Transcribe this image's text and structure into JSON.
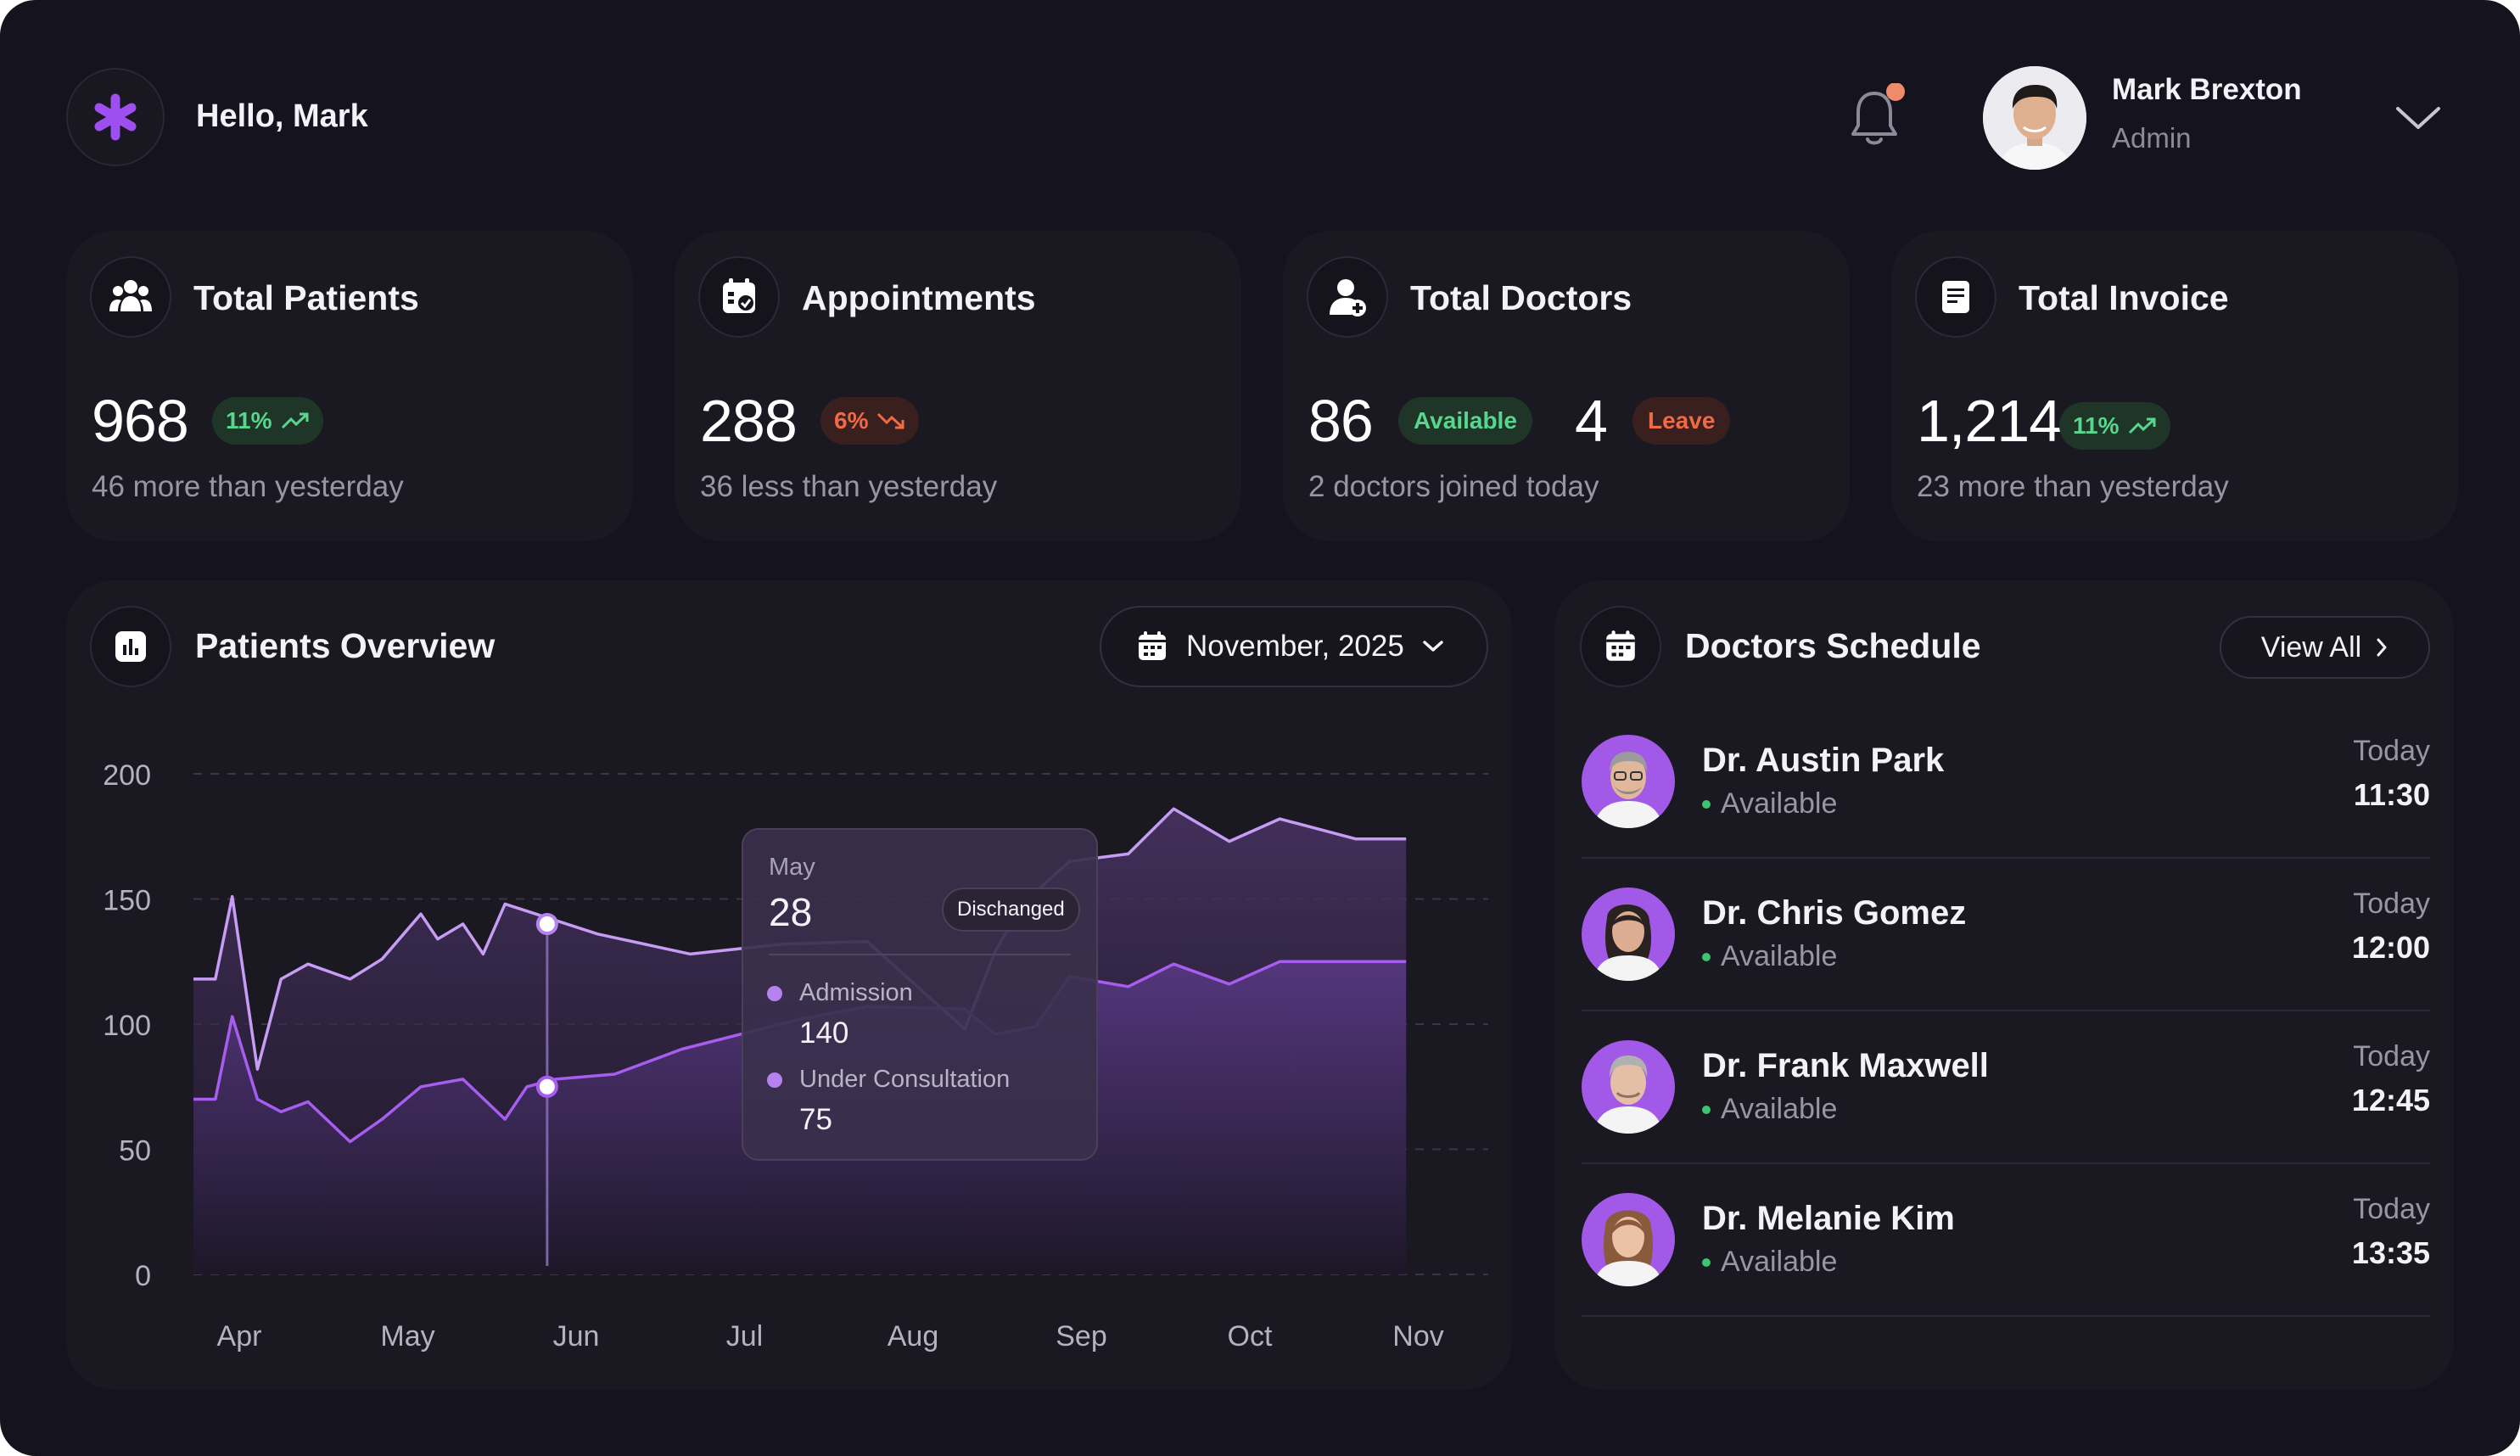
{
  "header": {
    "greeting": "Hello, Mark",
    "user_name": "Mark Brexton",
    "user_role": "Admin"
  },
  "stats": [
    {
      "title": "Total Patients",
      "value": "968",
      "badge": "11%",
      "trend": "up",
      "subtitle": "46 more than yesterday",
      "icon": "users-icon"
    },
    {
      "title": "Appointments",
      "value": "288",
      "badge": "6%",
      "trend": "down",
      "subtitle": "36 less than yesterday",
      "icon": "calendar-check-icon"
    },
    {
      "title": "Total Doctors",
      "value": "86",
      "available_label": "Available",
      "value2": "4",
      "leave_label": "Leave",
      "subtitle": "2 doctors joined today",
      "icon": "doctor-icon"
    },
    {
      "title": "Total Invoice",
      "value": "1,214",
      "badge": "11%",
      "trend": "up",
      "subtitle": "23 more than yesterday",
      "icon": "invoice-icon"
    }
  ],
  "overview": {
    "title": "Patients Overview",
    "month_select": "November, 2025"
  },
  "chart_data": {
    "type": "area",
    "categories": [
      "Apr",
      "May",
      "Jun",
      "Jul",
      "Aug",
      "Sep",
      "Oct",
      "Nov"
    ],
    "x_tick_labels": [
      "Apr",
      "May",
      "Jun",
      "Jul",
      "Aug",
      "Sep",
      "Oct",
      "Nov"
    ],
    "y_tick_labels": [
      "0",
      "50",
      "100",
      "150",
      "200"
    ],
    "ylim": [
      0,
      200
    ],
    "grid": true,
    "series": [
      {
        "name": "Admission",
        "color": "#c79cf5",
        "points": [
          [
            0,
            118
          ],
          [
            0.13,
            118
          ],
          [
            0.23,
            151
          ],
          [
            0.38,
            82
          ],
          [
            0.52,
            118
          ],
          [
            0.68,
            124
          ],
          [
            0.93,
            118
          ],
          [
            1.12,
            126
          ],
          [
            1.35,
            144
          ],
          [
            1.45,
            134
          ],
          [
            1.6,
            140
          ],
          [
            1.72,
            128
          ],
          [
            1.85,
            148
          ],
          [
            2.4,
            136
          ],
          [
            2.95,
            128
          ],
          [
            3.5,
            132
          ],
          [
            4.0,
            133
          ],
          [
            4.58,
            98
          ],
          [
            4.76,
            129
          ],
          [
            4.92,
            148
          ],
          [
            5.2,
            165
          ],
          [
            5.55,
            168
          ],
          [
            5.82,
            186
          ],
          [
            6.15,
            173
          ],
          [
            6.45,
            182
          ],
          [
            6.9,
            174
          ],
          [
            7.2,
            174
          ]
        ]
      },
      {
        "name": "Under Consultation",
        "color": "#a65df0",
        "points": [
          [
            0,
            70
          ],
          [
            0.13,
            70
          ],
          [
            0.23,
            103
          ],
          [
            0.38,
            70
          ],
          [
            0.52,
            65
          ],
          [
            0.68,
            69
          ],
          [
            0.93,
            53
          ],
          [
            1.12,
            62
          ],
          [
            1.35,
            75
          ],
          [
            1.6,
            78
          ],
          [
            1.85,
            62
          ],
          [
            1.98,
            75
          ],
          [
            2.15,
            78
          ],
          [
            2.5,
            80
          ],
          [
            2.9,
            90
          ],
          [
            3.25,
            96
          ],
          [
            3.6,
            102
          ],
          [
            4.0,
            107
          ],
          [
            4.58,
            106
          ],
          [
            4.76,
            96
          ],
          [
            5.0,
            99
          ],
          [
            5.2,
            119
          ],
          [
            5.55,
            115
          ],
          [
            5.82,
            124
          ],
          [
            6.15,
            116
          ],
          [
            6.45,
            125
          ],
          [
            6.9,
            125
          ],
          [
            7.2,
            125
          ]
        ]
      }
    ],
    "hover_index": 2.1,
    "tooltip": {
      "month": "May",
      "day": "28",
      "badge": "Dischanged",
      "items": [
        {
          "label": "Admission",
          "value": "140"
        },
        {
          "label": "Under Consultation",
          "value": "75"
        }
      ]
    }
  },
  "schedule": {
    "title": "Doctors Schedule",
    "view_all": "View All",
    "doctors": [
      {
        "name": "Dr. Austin Park",
        "status": "Available",
        "day": "Today",
        "time": "11:30"
      },
      {
        "name": "Dr. Chris Gomez",
        "status": "Available",
        "day": "Today",
        "time": "12:00"
      },
      {
        "name": "Dr. Frank Maxwell",
        "status": "Available",
        "day": "Today",
        "time": "12:45"
      },
      {
        "name": "Dr. Melanie Kim",
        "status": "Available",
        "day": "Today",
        "time": "13:35"
      }
    ]
  },
  "colors": {
    "accent": "#a259e8",
    "positive": "#58d68d",
    "negative": "#ef6a45",
    "notification": "#ef8a6a"
  }
}
